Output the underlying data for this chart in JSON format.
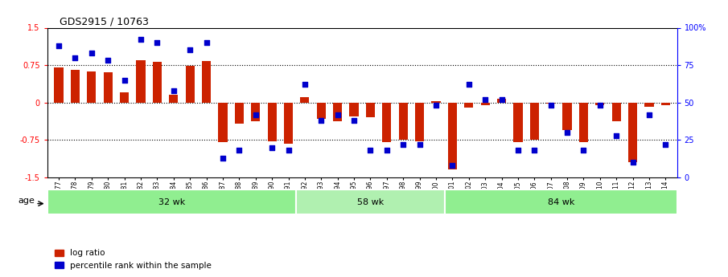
{
  "title": "GDS2915 / 10763",
  "samples": [
    "GSM97277",
    "GSM97278",
    "GSM97279",
    "GSM97280",
    "GSM97281",
    "GSM97282",
    "GSM97283",
    "GSM97284",
    "GSM97285",
    "GSM97286",
    "GSM97287",
    "GSM97288",
    "GSM97289",
    "GSM97290",
    "GSM97291",
    "GSM97292",
    "GSM97293",
    "GSM97294",
    "GSM97295",
    "GSM97296",
    "GSM97297",
    "GSM97298",
    "GSM97299",
    "GSM97300",
    "GSM97301",
    "GSM97302",
    "GSM97303",
    "GSM97304",
    "GSM97305",
    "GSM97306",
    "GSM97307",
    "GSM97308",
    "GSM97309",
    "GSM97310",
    "GSM97311",
    "GSM97312",
    "GSM97313",
    "GSM97314"
  ],
  "log_ratio": [
    0.7,
    0.65,
    0.62,
    0.6,
    0.2,
    0.85,
    0.82,
    0.15,
    0.74,
    0.83,
    -0.8,
    -0.42,
    -0.38,
    -0.78,
    -0.82,
    0.1,
    -0.32,
    -0.38,
    -0.28,
    -0.3,
    -0.8,
    -0.75,
    -0.78,
    0.02,
    -1.35,
    -0.1,
    -0.05,
    0.08,
    -0.8,
    -0.75,
    -0.02,
    -0.55,
    -0.8,
    -0.05,
    -0.38,
    -1.2,
    -0.08,
    -0.06
  ],
  "percentile": [
    88,
    80,
    83,
    78,
    65,
    92,
    90,
    58,
    85,
    90,
    13,
    18,
    42,
    20,
    18,
    62,
    38,
    42,
    38,
    18,
    18,
    22,
    22,
    48,
    8,
    62,
    52,
    52,
    18,
    18,
    48,
    30,
    18,
    48,
    28,
    10,
    42,
    22
  ],
  "group_labels": [
    "32 wk",
    "58 wk",
    "84 wk"
  ],
  "group_ranges": [
    [
      0,
      15
    ],
    [
      15,
      24
    ],
    [
      24,
      38
    ]
  ],
  "bar_color": "#cc2200",
  "dot_color": "#0000cc",
  "ylim": [
    -1.5,
    1.5
  ],
  "yticks_left": [
    -1.5,
    -0.75,
    0.0,
    0.75,
    1.5
  ],
  "yticks_right": [
    0,
    25,
    50,
    75,
    100
  ],
  "right_labels": [
    "0",
    "25",
    "50",
    "75",
    "100%"
  ],
  "hline_vals": [
    0.75,
    0.0,
    -0.75
  ],
  "background_color": "#ffffff"
}
